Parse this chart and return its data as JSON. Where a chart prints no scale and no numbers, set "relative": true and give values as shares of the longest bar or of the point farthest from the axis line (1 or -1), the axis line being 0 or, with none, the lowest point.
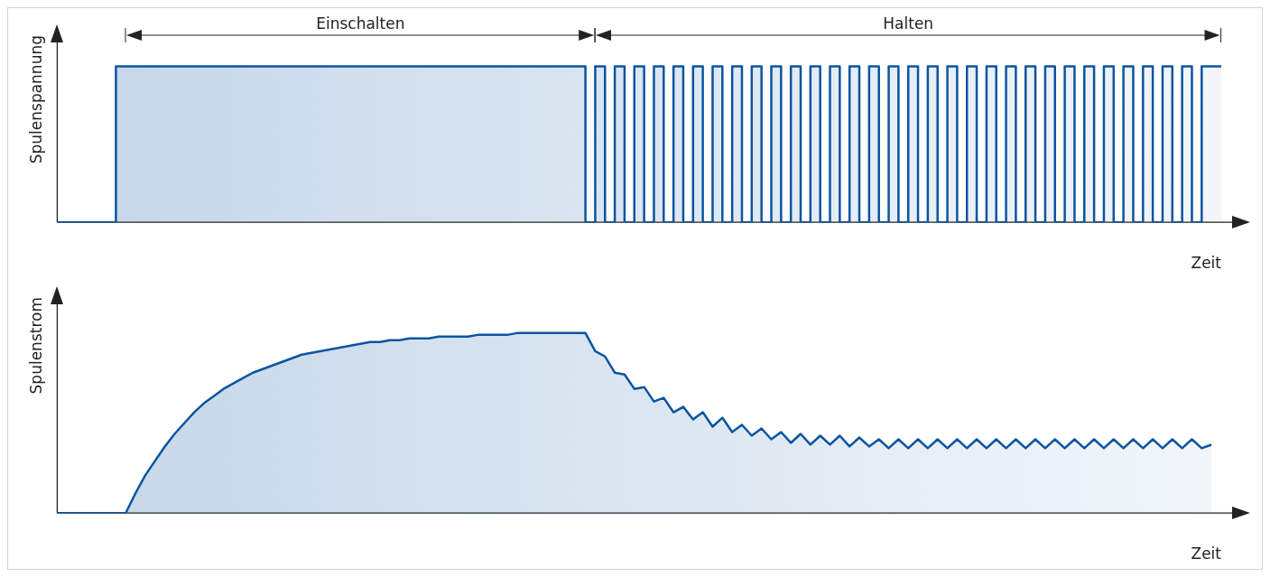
{
  "chart_data": [
    {
      "type": "step",
      "ylabel": "Spulenspannung",
      "xlabel": "Zeit",
      "relative": true,
      "grid": false,
      "legend": false,
      "marker": "none",
      "annotations": [
        "Einschalten",
        "Halten"
      ],
      "categories": [
        null,
        null,
        null,
        null,
        null,
        null,
        null,
        null,
        null,
        null,
        null,
        null,
        null,
        null,
        null,
        null,
        null,
        null,
        null,
        null,
        null,
        null,
        null,
        null,
        null,
        null,
        null,
        null,
        null,
        null,
        null,
        null,
        null,
        null,
        null,
        null,
        null,
        null,
        null,
        null,
        null,
        null,
        null,
        null,
        null,
        null,
        null,
        null,
        null,
        null,
        null,
        null,
        null,
        null,
        null,
        null,
        null,
        null,
        null,
        null,
        null,
        null,
        null,
        null,
        null,
        null,
        null,
        null,
        null,
        null,
        null,
        null,
        null,
        null,
        null,
        null,
        null,
        null,
        null,
        null,
        null,
        null,
        null,
        null,
        null,
        null,
        null,
        null,
        null,
        null,
        null,
        null,
        null,
        null,
        null,
        null,
        null,
        null,
        null,
        null,
        null,
        null,
        null,
        null,
        null,
        null,
        null,
        null,
        null,
        null,
        null,
        null,
        null,
        null,
        null,
        null,
        null,
        null,
        null,
        null
      ],
      "series": [
        {
          "color": "#0b54a0",
          "values": [
            0,
            0,
            0,
            0,
            0,
            0,
            0,
            1,
            1,
            1,
            1,
            1,
            1,
            1,
            1,
            1,
            1,
            1,
            1,
            1,
            1,
            1,
            1,
            1,
            1,
            1,
            1,
            1,
            1,
            1,
            1,
            1,
            1,
            1,
            1,
            1,
            1,
            1,
            1,
            1,
            1,
            1,
            1,
            1,
            1,
            1,
            1,
            1,
            1,
            1,
            1,
            1,
            1,
            1,
            1,
            0,
            1,
            0,
            1,
            0,
            1,
            0,
            1,
            0,
            1,
            0,
            1,
            0,
            1,
            0,
            1,
            0,
            1,
            0,
            1,
            0,
            1,
            0,
            1,
            0,
            1,
            0,
            1,
            0,
            1,
            0,
            1,
            0,
            1,
            0,
            1,
            0,
            1,
            0,
            1,
            0,
            1,
            0,
            1,
            0,
            1,
            0,
            1,
            0,
            1,
            0,
            1,
            0,
            1,
            0,
            1,
            0,
            1,
            0,
            1,
            0,
            1,
            0,
            1,
            1
          ]
        }
      ]
    },
    {
      "type": "area",
      "ylabel": "Spulenstrom",
      "xlabel": "Zeit",
      "relative": true,
      "grid": false,
      "legend": false,
      "marker": "none",
      "categories": [
        null,
        null,
        null,
        null,
        null,
        null,
        null,
        null,
        null,
        null,
        null,
        null,
        null,
        null,
        null,
        null,
        null,
        null,
        null,
        null,
        null,
        null,
        null,
        null,
        null,
        null,
        null,
        null,
        null,
        null,
        null,
        null,
        null,
        null,
        null,
        null,
        null,
        null,
        null,
        null,
        null,
        null,
        null,
        null,
        null,
        null,
        null,
        null,
        null,
        null,
        null,
        null,
        null,
        null,
        null,
        null,
        null,
        null,
        null,
        null,
        null,
        null,
        null,
        null,
        null,
        null,
        null,
        null,
        null,
        null,
        null,
        null,
        null,
        null,
        null,
        null,
        null,
        null,
        null,
        null,
        null,
        null,
        null,
        null,
        null,
        null,
        null,
        null,
        null,
        null,
        null,
        null,
        null,
        null,
        null,
        null,
        null,
        null,
        null,
        null,
        null,
        null,
        null,
        null,
        null,
        null,
        null,
        null,
        null,
        null,
        null,
        null,
        null,
        null,
        null,
        null,
        null,
        null,
        null,
        null
      ],
      "series": [
        {
          "color": "#0b54a0",
          "values": [
            0,
            0,
            0,
            0,
            0,
            0,
            0,
            0,
            0.11,
            0.21,
            0.29,
            0.37,
            0.44,
            0.5,
            0.56,
            0.61,
            0.65,
            0.69,
            0.72,
            0.75,
            0.78,
            0.8,
            0.82,
            0.84,
            0.86,
            0.88,
            0.89,
            0.9,
            0.91,
            0.92,
            0.93,
            0.94,
            0.95,
            0.95,
            0.96,
            0.96,
            0.97,
            0.97,
            0.97,
            0.98,
            0.98,
            0.98,
            0.98,
            0.99,
            0.99,
            0.99,
            0.99,
            1,
            1,
            1,
            1,
            1,
            1,
            1,
            1,
            0.9,
            0.87,
            0.78,
            0.77,
            0.69,
            0.7,
            0.62,
            0.64,
            0.56,
            0.59,
            0.52,
            0.56,
            0.48,
            0.53,
            0.45,
            0.49,
            0.43,
            0.47,
            0.41,
            0.45,
            0.39,
            0.44,
            0.38,
            0.43,
            0.38,
            0.43,
            0.37,
            0.42,
            0.37,
            0.41,
            0.36,
            0.41,
            0.36,
            0.41,
            0.36,
            0.41,
            0.36,
            0.41,
            0.36,
            0.41,
            0.36,
            0.41,
            0.36,
            0.41,
            0.36,
            0.41,
            0.36,
            0.41,
            0.36,
            0.41,
            0.36,
            0.41,
            0.36,
            0.41,
            0.36,
            0.41,
            0.36,
            0.41,
            0.36,
            0.41,
            0.36,
            0.41,
            0.36,
            0.38,
            null
          ]
        }
      ]
    }
  ]
}
